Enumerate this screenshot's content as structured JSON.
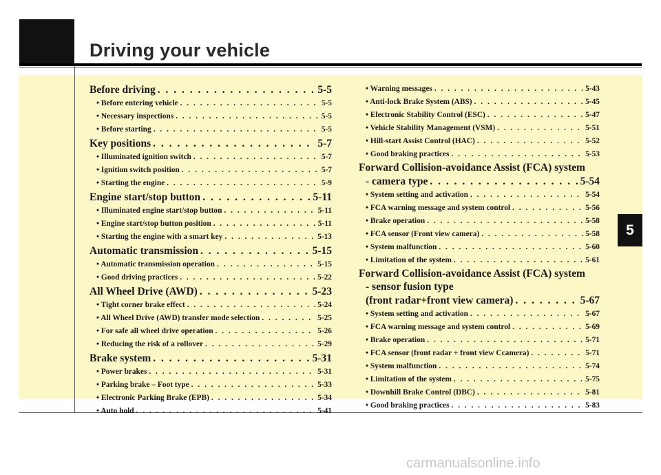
{
  "page": {
    "title": "Driving your vehicle",
    "section_tab": "5",
    "watermark": "carmanualsonline.info"
  },
  "left_column": [
    {
      "text": "Before driving",
      "page": "5-5",
      "level": "h"
    },
    {
      "text": "• Before entering vehicle",
      "page": "5-5",
      "level": "s"
    },
    {
      "text": "• Necessary inspections",
      "page": "5-5",
      "level": "s"
    },
    {
      "text": "• Before starting",
      "page": "5-5",
      "level": "s"
    },
    {
      "text": "Key positions",
      "page": "5-7",
      "level": "h"
    },
    {
      "text": "• Illuminated ignition switch",
      "page": "5-7",
      "level": "s"
    },
    {
      "text": "• Ignition switch position",
      "page": "5-7",
      "level": "s"
    },
    {
      "text": "• Starting the engine",
      "page": "5-9",
      "level": "s"
    },
    {
      "text": "Engine start/stop button",
      "page": "5-11",
      "level": "h"
    },
    {
      "text": "• Illuminated engine start/stop button",
      "page": "5-11",
      "level": "s"
    },
    {
      "text": "• Engine start/stop button position",
      "page": "5-11",
      "level": "s"
    },
    {
      "text": "• Starting the engine with a smart key",
      "page": "5-13",
      "level": "s"
    },
    {
      "text": "Automatic transmission",
      "page": "5-15",
      "level": "h"
    },
    {
      "text": "• Automatic transmission operation",
      "page": "5-15",
      "level": "s"
    },
    {
      "text": "• Good driving practices",
      "page": "5-22",
      "level": "s"
    },
    {
      "text": "All Wheel Drive (AWD)",
      "page": "5-23",
      "level": "h"
    },
    {
      "text": "• Tight corner brake effect",
      "page": "5-24",
      "level": "s"
    },
    {
      "text": "• All Wheel Drive (AWD) transfer mode selection",
      "page": "5-25",
      "level": "s"
    },
    {
      "text": "• For safe all wheel drive operation",
      "page": "5-26",
      "level": "s"
    },
    {
      "text": "• Reducing the risk of a rollover",
      "page": "5-29",
      "level": "s"
    },
    {
      "text": "Brake system",
      "page": "5-31",
      "level": "h"
    },
    {
      "text": "• Power brakes",
      "page": "5-31",
      "level": "s"
    },
    {
      "text": "• Parking brake – Foot type",
      "page": "5-33",
      "level": "s"
    },
    {
      "text": "• Electronic Parking Brake (EPB)",
      "page": "5-34",
      "level": "s"
    },
    {
      "text": "• Auto hold",
      "page": "5-41",
      "level": "s"
    }
  ],
  "right_column": [
    {
      "text": "• Warning messages",
      "page": "5-43",
      "level": "s"
    },
    {
      "text": "• Anti-lock Brake System (ABS)",
      "page": "5-45",
      "level": "s"
    },
    {
      "text": "• Electronic Stability Control (ESC)",
      "page": "5-47",
      "level": "s"
    },
    {
      "text": "• Vehicle Stability Management (VSM)",
      "page": "5-51",
      "level": "s"
    },
    {
      "text": "• Hill-start Assist Control (HAC)",
      "page": "5-52",
      "level": "s"
    },
    {
      "text": "• Good braking practices",
      "page": "5-53",
      "level": "s"
    },
    {
      "text": "Forward Collision-avoidance Assist (FCA) system",
      "page": "",
      "level": "c"
    },
    {
      "text": "- camera type",
      "page": "5-54",
      "level": "h",
      "indent": true
    },
    {
      "text": "• System setting and activation",
      "page": "5-54",
      "level": "s"
    },
    {
      "text": "• FCA warning message and system control",
      "page": "5-56",
      "level": "s"
    },
    {
      "text": "• Brake operation",
      "page": "5-58",
      "level": "s"
    },
    {
      "text": "• FCA sensor (Front view camera)",
      "page": "5-58",
      "level": "s"
    },
    {
      "text": "• System malfunction",
      "page": "5-60",
      "level": "s"
    },
    {
      "text": "• Limitation of the system",
      "page": "5-61",
      "level": "s"
    },
    {
      "text": "Forward Collision-avoidance Assist (FCA) system",
      "page": "",
      "level": "c"
    },
    {
      "text": "- sensor fusion type",
      "page": "",
      "level": "c",
      "indent": true
    },
    {
      "text": "(front radar+front view camera)",
      "page": "5-67",
      "level": "h",
      "indent": true
    },
    {
      "text": "• System setting and activation",
      "page": "5-67",
      "level": "s"
    },
    {
      "text": "• FCA warning message and system control",
      "page": "5-69",
      "level": "s"
    },
    {
      "text": "• Brake operation",
      "page": "5-71",
      "level": "s"
    },
    {
      "text": "• FCA sensor (front radar + front view Ccamera)",
      "page": "5-71",
      "level": "s"
    },
    {
      "text": "• System malfunction",
      "page": "5-74",
      "level": "s"
    },
    {
      "text": "• Limitation of the system",
      "page": "5-75",
      "level": "s"
    },
    {
      "text": "• Downhill Brake Control (DBC)",
      "page": "5-81",
      "level": "s"
    },
    {
      "text": "• Good braking practices",
      "page": "5-83",
      "level": "s"
    }
  ]
}
